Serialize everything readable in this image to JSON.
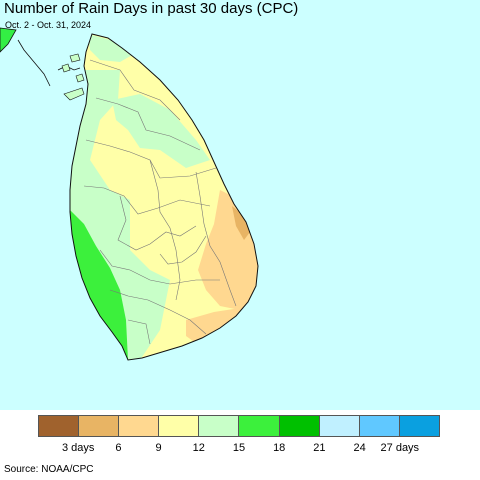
{
  "header": {
    "title": "Number of Rain Days in past 30 days (CPC)",
    "subtitle": "Oct. 2 - Oct. 31, 2024"
  },
  "colors": {
    "ocean": "#ccffff",
    "land_outside": "#33ee44",
    "coastline": "#111111",
    "district_border": "#777777"
  },
  "legend": {
    "colors": [
      "#a0622d",
      "#e8b464",
      "#ffd890",
      "#ffffa8",
      "#c8ffc8",
      "#3cf03c",
      "#00c000",
      "#c0f0ff",
      "#60c8ff",
      "#0aa0e0"
    ],
    "labels": [
      "3 days",
      "6",
      "9",
      "12",
      "15",
      "18",
      "21",
      "24",
      "27 days"
    ]
  },
  "source": "Source: NOAA/CPC"
}
